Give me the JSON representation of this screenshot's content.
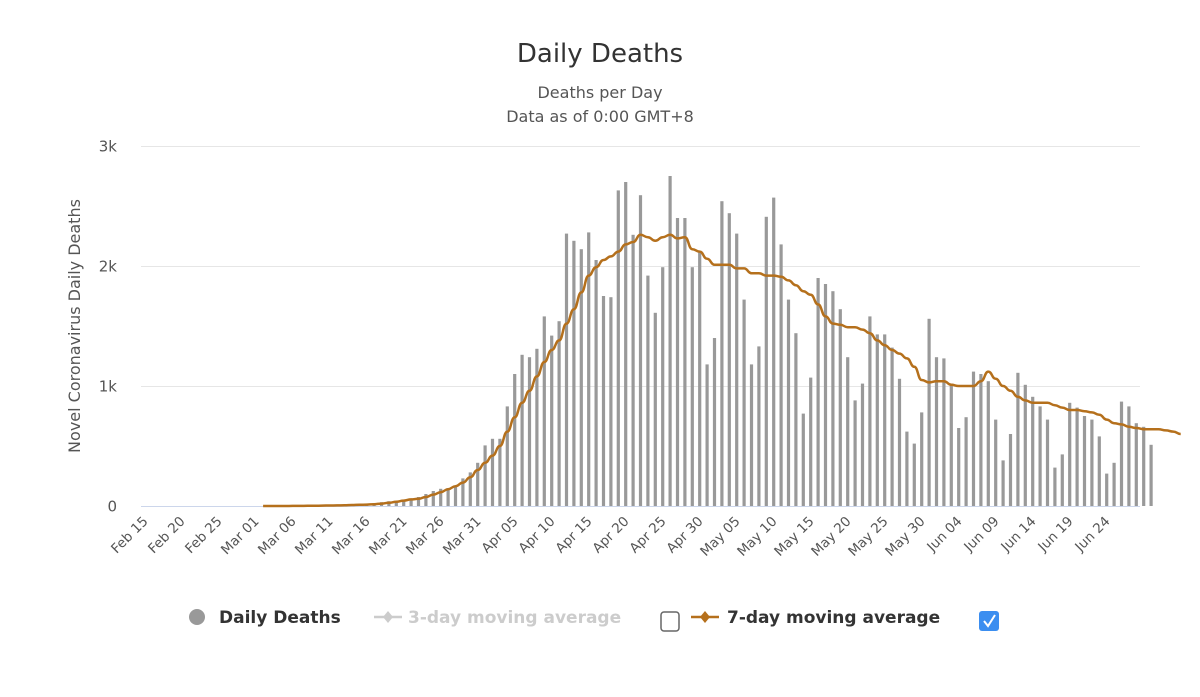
{
  "chart_data": {
    "type": "bar",
    "title": "Daily Deaths",
    "subtitle": [
      "Deaths per Day",
      "Data as of 0:00 GMT+8"
    ],
    "xlabel": "",
    "ylabel": "Novel Coronavirus Daily Deaths",
    "ylim": [
      0,
      3000
    ],
    "yticks": [
      0,
      1000,
      2000,
      3000
    ],
    "ytick_labels": [
      "0",
      "1k",
      "2k",
      "3k"
    ],
    "grid": true,
    "x_start": "Feb 15",
    "xtick_labels": [
      "Feb 15",
      "Feb 20",
      "Feb 25",
      "Mar 01",
      "Mar 06",
      "Mar 11",
      "Mar 16",
      "Mar 21",
      "Mar 26",
      "Mar 31",
      "Apr 05",
      "Apr 10",
      "Apr 15",
      "Apr 20",
      "Apr 25",
      "Apr 30",
      "May 05",
      "May 10",
      "May 15",
      "May 20",
      "May 25",
      "May 30",
      "Jun 04",
      "Jun 09",
      "Jun 14",
      "Jun 19",
      "Jun 24"
    ],
    "xtick_every_days": 5,
    "days": 134,
    "series": [
      {
        "name": "Daily Deaths",
        "type": "bar",
        "color": "#999999",
        "start_day": 16,
        "values": [
          0,
          0,
          0,
          0,
          0,
          1,
          1,
          2,
          3,
          5,
          8,
          9,
          11,
          10,
          15,
          24,
          32,
          40,
          42,
          47,
          55,
          75,
          100,
          125,
          143,
          150,
          168,
          230,
          280,
          360,
          505,
          560,
          560,
          830,
          1100,
          1260,
          1240,
          1310,
          1580,
          1420,
          1540,
          2270,
          2210,
          2140,
          2280,
          2050,
          1750,
          1740,
          2630,
          2700,
          2260,
          2590,
          1920,
          1610,
          1990,
          2750,
          2400,
          2400,
          1990,
          2120,
          1180,
          1400,
          2540,
          2440,
          2270,
          1720,
          1180,
          1330,
          2410,
          2570,
          2180,
          1720,
          1440,
          770,
          1070,
          1900,
          1850,
          1790,
          1640,
          1240,
          880,
          1020,
          1580,
          1430,
          1430,
          1320,
          1060,
          620,
          520,
          780,
          1560,
          1240,
          1230,
          1020,
          650,
          740,
          1120,
          1100,
          1040,
          720,
          380,
          600,
          1110,
          1010,
          910,
          830,
          720,
          320,
          430,
          860,
          820,
          750,
          720,
          580,
          270,
          360,
          870,
          830,
          690,
          660,
          510
        ]
      },
      {
        "name": "3-day moving average",
        "type": "line",
        "color": "#cccccc",
        "visible": false
      },
      {
        "name": "7-day moving average",
        "type": "line",
        "color": "#b5701c",
        "visible": true,
        "start_day": 16,
        "values": [
          0,
          0,
          0,
          0,
          1,
          1,
          2,
          2,
          3,
          4,
          5,
          6,
          8,
          10,
          12,
          15,
          20,
          27,
          35,
          45,
          55,
          60,
          75,
          95,
          115,
          140,
          165,
          195,
          240,
          300,
          360,
          420,
          500,
          620,
          740,
          860,
          960,
          1080,
          1200,
          1300,
          1380,
          1520,
          1640,
          1780,
          1920,
          1990,
          2050,
          2080,
          2120,
          2180,
          2200,
          2260,
          2240,
          2210,
          2240,
          2260,
          2230,
          2240,
          2140,
          2120,
          2060,
          2010,
          2010,
          2010,
          1980,
          1980,
          1940,
          1940,
          1920,
          1920,
          1910,
          1880,
          1840,
          1790,
          1760,
          1680,
          1580,
          1520,
          1510,
          1490,
          1490,
          1470,
          1440,
          1380,
          1340,
          1300,
          1270,
          1230,
          1160,
          1050,
          1030,
          1040,
          1040,
          1010,
          1000,
          1000,
          1000,
          1040,
          1120,
          1060,
          1000,
          960,
          910,
          880,
          860,
          860,
          860,
          840,
          820,
          800,
          800,
          790,
          780,
          760,
          720,
          690,
          680,
          660,
          650,
          640,
          640,
          640,
          630,
          620,
          600
        ]
      }
    ],
    "legend": {
      "placement": "bottom-center",
      "items": [
        {
          "label": "Daily Deaths",
          "symbol": "circle",
          "color": "#999999",
          "enabled": true
        },
        {
          "label": "3-day moving average",
          "symbol": "line-diamond",
          "color": "#cccccc",
          "enabled": false,
          "checkbox_checked": false
        },
        {
          "label": "7-day moving average",
          "symbol": "line-diamond",
          "color": "#b5701c",
          "enabled": true,
          "checkbox_checked": true
        }
      ]
    }
  }
}
